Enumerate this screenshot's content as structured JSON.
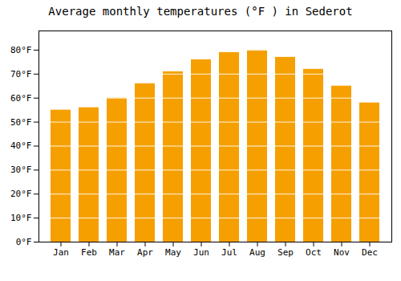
{
  "chart_data": {
    "type": "bar",
    "title": "Average monthly temperatures (°F ) in Sederot",
    "categories": [
      "Jan",
      "Feb",
      "Mar",
      "Apr",
      "May",
      "Jun",
      "Jul",
      "Aug",
      "Sep",
      "Oct",
      "Nov",
      "Dec"
    ],
    "values": [
      55,
      56,
      60,
      66,
      71,
      76,
      79,
      80,
      77,
      72,
      65,
      58
    ],
    "color": "#F5A000",
    "ylim": [
      0,
      88
    ],
    "yticks": [
      {
        "value": 0,
        "label": "0°F"
      },
      {
        "value": 10,
        "label": "10°F"
      },
      {
        "value": 20,
        "label": "20°F"
      },
      {
        "value": 30,
        "label": "30°F"
      },
      {
        "value": 40,
        "label": "40°F"
      },
      {
        "value": 50,
        "label": "50°F"
      },
      {
        "value": 60,
        "label": "60°F"
      },
      {
        "value": 70,
        "label": "70°F"
      },
      {
        "value": 80,
        "label": "80°F"
      }
    ],
    "grid": true
  }
}
